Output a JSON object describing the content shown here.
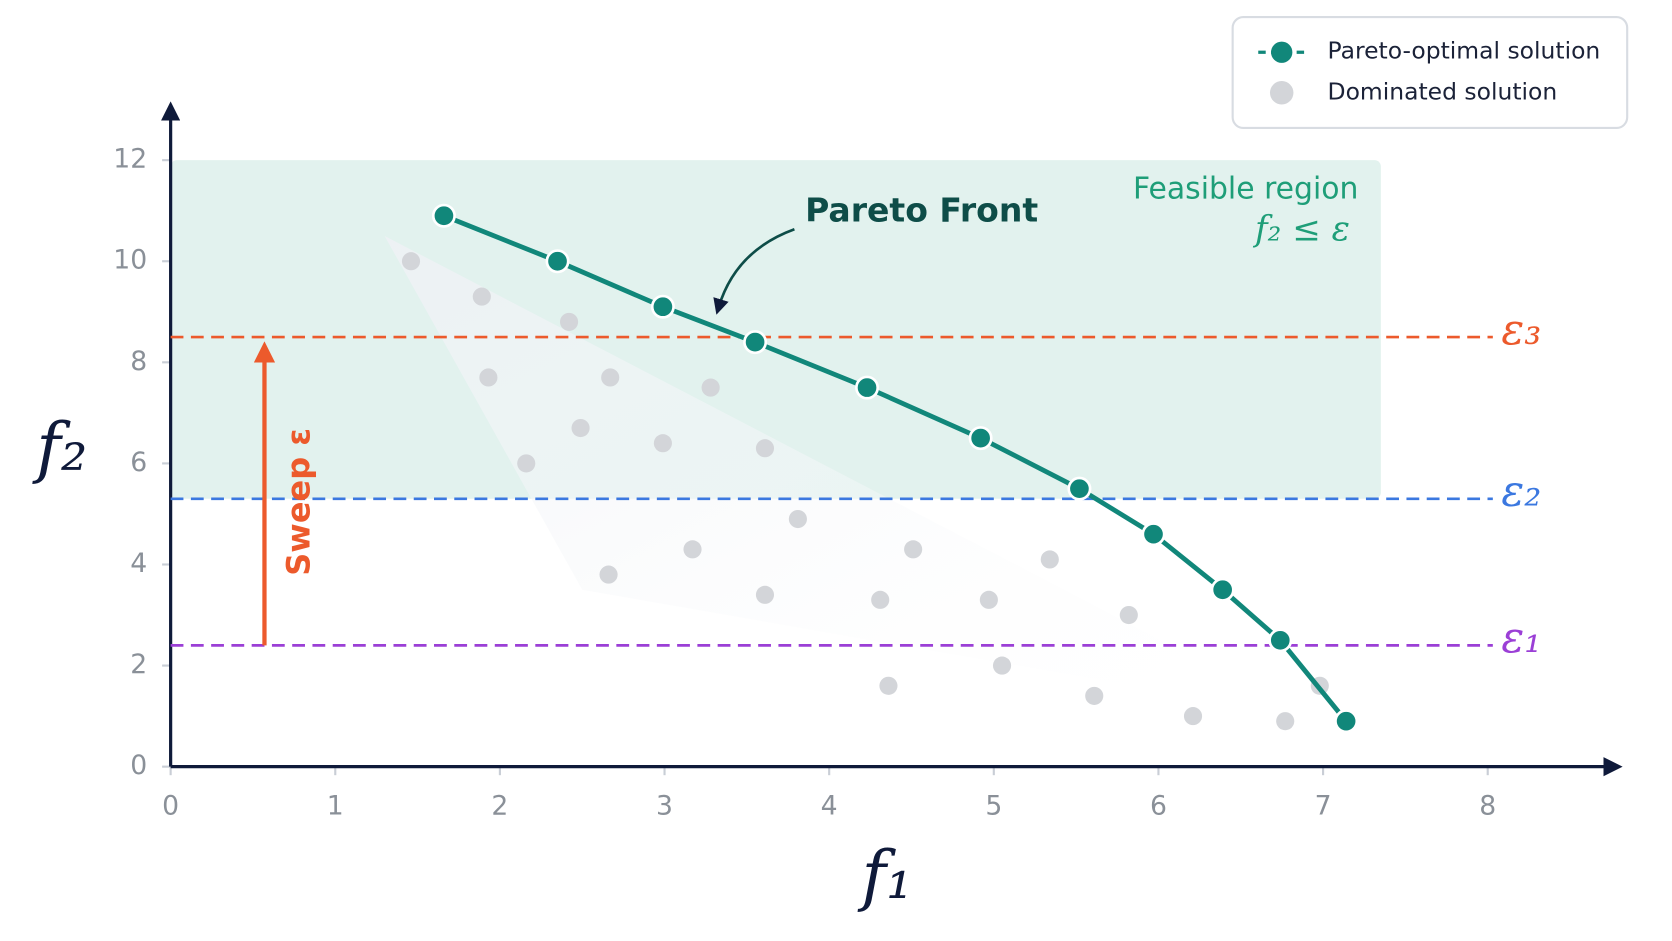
{
  "chart_data": {
    "type": "scatter",
    "xlabel": "f₁",
    "ylabel": "f₂",
    "xlim": [
      0,
      8.8
    ],
    "ylim": [
      0,
      13.1
    ],
    "xticks": [
      0,
      1,
      2,
      3,
      4,
      5,
      6,
      7,
      8
    ],
    "yticks": [
      0,
      2,
      4,
      6,
      8,
      10,
      12
    ],
    "legend": "upper right",
    "series": [
      {
        "name": "Pareto-optimal solution",
        "color": "#11877a",
        "line": true,
        "x": [
          1.66,
          2.35,
          2.99,
          3.55,
          4.23,
          4.92,
          5.52,
          5.97,
          6.39,
          6.74,
          7.14
        ],
        "values": [
          10.9,
          10.0,
          9.1,
          8.4,
          7.5,
          6.5,
          5.5,
          4.6,
          3.5,
          2.5,
          0.9
        ]
      },
      {
        "name": "Dominated solution",
        "color": "#d3d5d9",
        "line": false,
        "x": [
          1.46,
          1.89,
          2.42,
          1.93,
          2.67,
          3.28,
          2.49,
          2.99,
          3.61,
          2.16,
          3.81,
          3.17,
          4.51,
          5.34,
          2.66,
          3.61,
          4.31,
          4.97,
          5.82,
          5.05,
          4.36,
          5.61,
          6.21,
          6.77,
          6.98
        ],
        "values": [
          10.0,
          9.3,
          8.8,
          7.7,
          7.7,
          7.5,
          6.7,
          6.4,
          6.3,
          6.0,
          4.9,
          4.3,
          4.3,
          4.1,
          3.8,
          3.4,
          3.3,
          3.3,
          3.0,
          2.0,
          1.6,
          1.4,
          1.0,
          0.9,
          1.6
        ]
      }
    ],
    "thresholds": [
      {
        "label": "ε₁",
        "value": 2.4,
        "color": "#9b3fd6"
      },
      {
        "label": "ε₂",
        "value": 5.3,
        "color": "#3b78e0"
      },
      {
        "label": "ε₃",
        "value": 8.5,
        "color": "#ec5a2c"
      }
    ],
    "region": {
      "label": "Feasible region",
      "sublabel": "f₂ ≤ ε",
      "color": "#1e9e78"
    },
    "front_label": "Pareto Front",
    "sweep_label": "Sweep ε"
  }
}
